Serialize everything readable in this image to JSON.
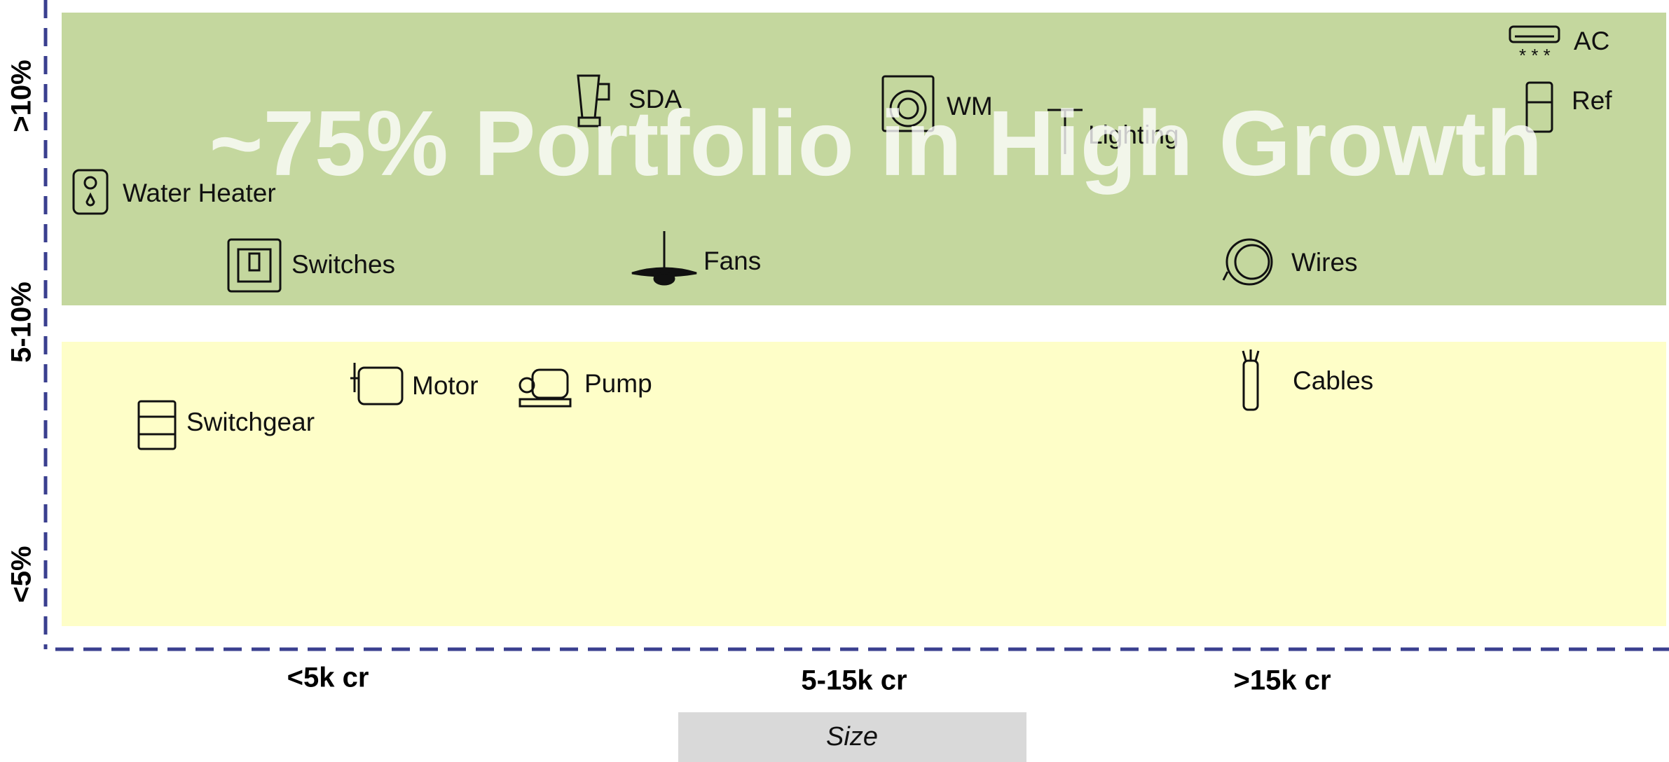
{
  "title": "~75% Portfolio in High Growth",
  "y_axis": {
    "labels": [
      ">10%",
      "5-10%",
      "<5%"
    ]
  },
  "x_axis": {
    "labels": [
      "<5k cr",
      "5-15k cr",
      ">15k cr"
    ],
    "title": "Size"
  },
  "items": [
    {
      "label": "AC"
    },
    {
      "label": "Ref"
    },
    {
      "label": "SDA"
    },
    {
      "label": "WM"
    },
    {
      "label": "Lighting"
    },
    {
      "label": "Water Heater"
    },
    {
      "label": "Switches"
    },
    {
      "label": "Fans"
    },
    {
      "label": "Wires"
    },
    {
      "label": "Switchgear"
    },
    {
      "label": "Motor"
    },
    {
      "label": "Pump"
    },
    {
      "label": "Cables"
    }
  ]
}
